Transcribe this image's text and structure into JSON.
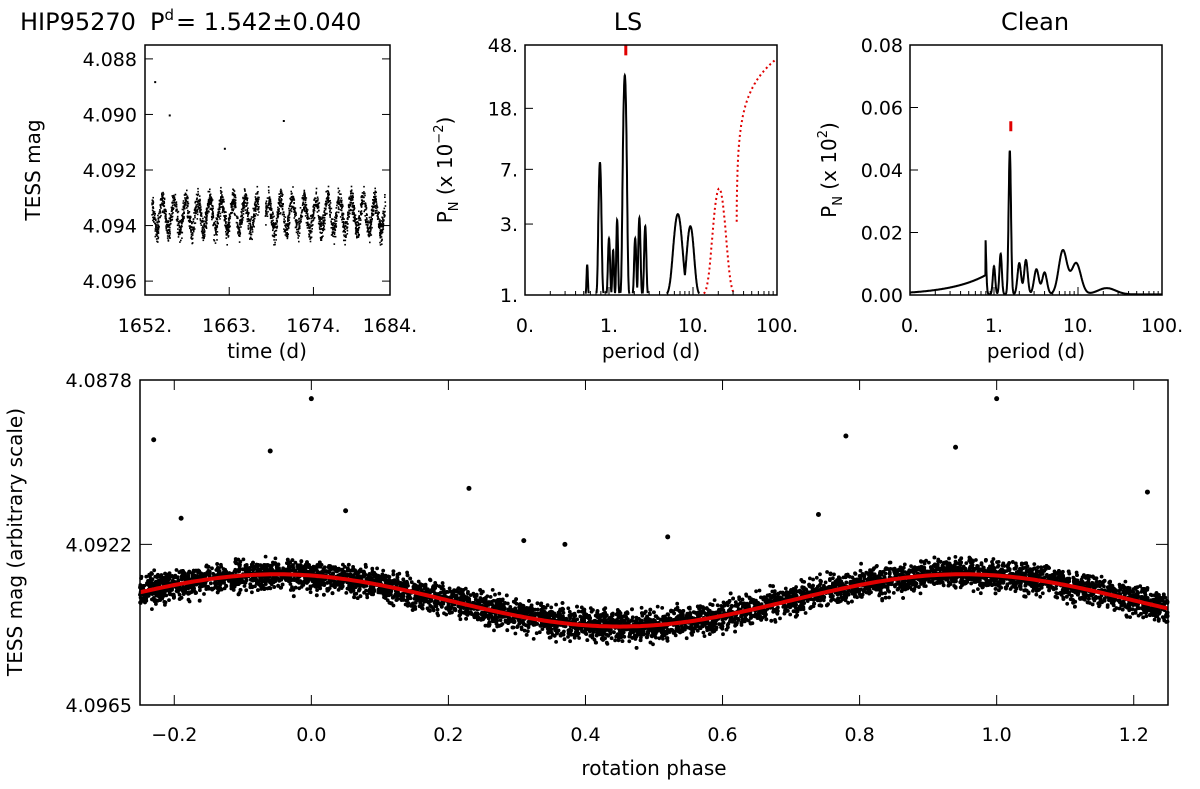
{
  "header": {
    "star": "HIP95270",
    "period_prefix": "P",
    "period_sup": "d",
    "period_value": "= 1.542±0.040"
  },
  "chart_data": [
    {
      "id": "lightcurve",
      "type": "scatter",
      "title": "",
      "xlabel": "time (d)",
      "ylabel": "TESS mag",
      "xlim": [
        1652,
        1684
      ],
      "ylim": [
        4.0965,
        4.0875
      ],
      "x_ticks": [
        "1652.",
        "1663.",
        "1674.",
        "1684."
      ],
      "x_tick_values": [
        1652,
        1663,
        1674,
        1684
      ],
      "y_ticks": [
        "4.088",
        "4.090",
        "4.092",
        "4.094",
        "4.096"
      ],
      "y_tick_values": [
        4.088,
        4.09,
        4.092,
        4.094,
        4.096
      ],
      "color": "#000000",
      "band": {
        "center": 4.0936,
        "amplitude": 0.0007,
        "period": 1.542,
        "spread": 0.0006
      },
      "outliers": [
        [
          1653.2,
          4.0888
        ],
        [
          1655.1,
          4.09
        ],
        [
          1662.3,
          4.0912
        ],
        [
          1670.0,
          4.0902
        ]
      ]
    },
    {
      "id": "ls-periodogram",
      "type": "line",
      "title": "LS",
      "xlabel": "period (d)",
      "ylabel": "P",
      "ylabel_sub": "N",
      "ylabel_tail": " (x 10",
      "ylabel_exp": "−2",
      "ylabel_close": ")",
      "x_scale": "log",
      "y_scale": "log",
      "xlim": [
        0.1,
        100
      ],
      "ylim": [
        1,
        48
      ],
      "x_ticks": [
        "0.",
        "1.",
        "10.",
        "100."
      ],
      "x_tick_values": [
        0.1,
        1,
        10,
        100
      ],
      "y_ticks": [
        "1.",
        "3.",
        "7.",
        "18.",
        "48."
      ],
      "y_tick_values": [
        1,
        3,
        7,
        18,
        48
      ],
      "series": [
        {
          "name": "LS power",
          "color": "#000000",
          "peaks": [
            {
              "period": 0.55,
              "power": 1.6,
              "width": 0.01
            },
            {
              "period": 0.78,
              "power": 7.8,
              "width": 0.018
            },
            {
              "period": 1.0,
              "power": 2.4,
              "width": 0.015
            },
            {
              "period": 1.12,
              "power": 2.0,
              "width": 0.012
            },
            {
              "period": 1.25,
              "power": 3.2,
              "width": 0.012
            },
            {
              "period": 1.542,
              "power": 30,
              "width": 0.02
            },
            {
              "period": 2.05,
              "power": 2.4,
              "width": 0.015
            },
            {
              "period": 2.3,
              "power": 3.3,
              "width": 0.015
            },
            {
              "period": 2.7,
              "power": 2.9,
              "width": 0.015
            },
            {
              "period": 6.6,
              "power": 3.5,
              "width": 0.06
            },
            {
              "period": 9.3,
              "power": 2.9,
              "width": 0.05
            }
          ]
        },
        {
          "name": "window function",
          "color": "#e00000",
          "style": "dotted",
          "peaks": [
            {
              "period": 20.5,
              "power": 5.2,
              "width": 0.08
            }
          ],
          "rise": {
            "start": 33,
            "end": 95,
            "max": 38
          }
        }
      ],
      "marker": {
        "period": 1.542,
        "color": "#e00000"
      }
    },
    {
      "id": "clean-periodogram",
      "type": "line",
      "title": "Clean",
      "xlabel": "period (d)",
      "ylabel": "P",
      "ylabel_sub": "N",
      "ylabel_tail": " (x 10",
      "ylabel_exp": "2",
      "ylabel_close": ")",
      "x_scale": "log",
      "xlim": [
        0.1,
        100
      ],
      "ylim": [
        0,
        0.08
      ],
      "x_ticks": [
        "0.",
        "1.",
        "10.",
        "100."
      ],
      "x_tick_values": [
        0.1,
        1,
        10,
        100
      ],
      "y_ticks": [
        "0.00",
        "0.02",
        "0.04",
        "0.06",
        "0.08"
      ],
      "y_tick_values": [
        0,
        0.02,
        0.04,
        0.06,
        0.08
      ],
      "series": [
        {
          "name": "Clean power",
          "color": "#000000",
          "peaks": [
            {
              "period": 0.55,
              "power": 0.009,
              "width": 0.01
            },
            {
              "period": 0.78,
              "power": 0.021,
              "width": 0.018
            },
            {
              "period": 1.0,
              "power": 0.009,
              "width": 0.02
            },
            {
              "period": 1.2,
              "power": 0.013,
              "width": 0.02
            },
            {
              "period": 1.542,
              "power": 0.046,
              "width": 0.02
            },
            {
              "period": 2.0,
              "power": 0.01,
              "width": 0.03
            },
            {
              "period": 2.4,
              "power": 0.011,
              "width": 0.03
            },
            {
              "period": 3.2,
              "power": 0.008,
              "width": 0.04
            },
            {
              "period": 4.0,
              "power": 0.007,
              "width": 0.04
            },
            {
              "period": 6.6,
              "power": 0.014,
              "width": 0.07
            },
            {
              "period": 9.5,
              "power": 0.01,
              "width": 0.08
            },
            {
              "period": 22,
              "power": 0.002,
              "width": 0.15
            }
          ]
        }
      ],
      "marker": {
        "period": 1.542,
        "color": "#e00000"
      }
    },
    {
      "id": "phased-lightcurve",
      "type": "scatter",
      "title": "",
      "xlabel": "rotation phase",
      "ylabel": "TESS mag (arbitrary scale)",
      "xlim": [
        -0.25,
        1.25
      ],
      "ylim": [
        4.0965,
        4.0878
      ],
      "x_ticks": [
        "−0.2",
        "0.0",
        "0.2",
        "0.4",
        "0.6",
        "0.8",
        "1.0",
        "1.2"
      ],
      "x_tick_values": [
        -0.2,
        0.0,
        0.2,
        0.4,
        0.6,
        0.8,
        1.0,
        1.2
      ],
      "y_ticks": [
        "4.0878",
        "4.0922",
        "4.0965"
      ],
      "y_tick_values": [
        4.0878,
        4.0922,
        4.0965
      ],
      "points_color": "#000000",
      "fit": {
        "name": "sinusoidal fit",
        "color": "#e00000",
        "mean": 4.0937,
        "amplitude": 0.0007,
        "phase_max": -0.05
      },
      "band": {
        "spread": 0.0006
      },
      "outliers": [
        [
          -0.23,
          4.0894
        ],
        [
          0.0,
          4.0883
        ],
        [
          -0.06,
          4.0897
        ],
        [
          0.05,
          4.0913
        ],
        [
          0.23,
          4.0907
        ],
        [
          0.31,
          4.0921
        ],
        [
          0.37,
          4.0922
        ],
        [
          0.52,
          4.092
        ],
        [
          0.74,
          4.0914
        ],
        [
          0.78,
          4.0893
        ],
        [
          0.94,
          4.0896
        ],
        [
          1.0,
          4.0883
        ],
        [
          1.22,
          4.0908
        ],
        [
          -0.19,
          4.0915
        ]
      ]
    }
  ]
}
